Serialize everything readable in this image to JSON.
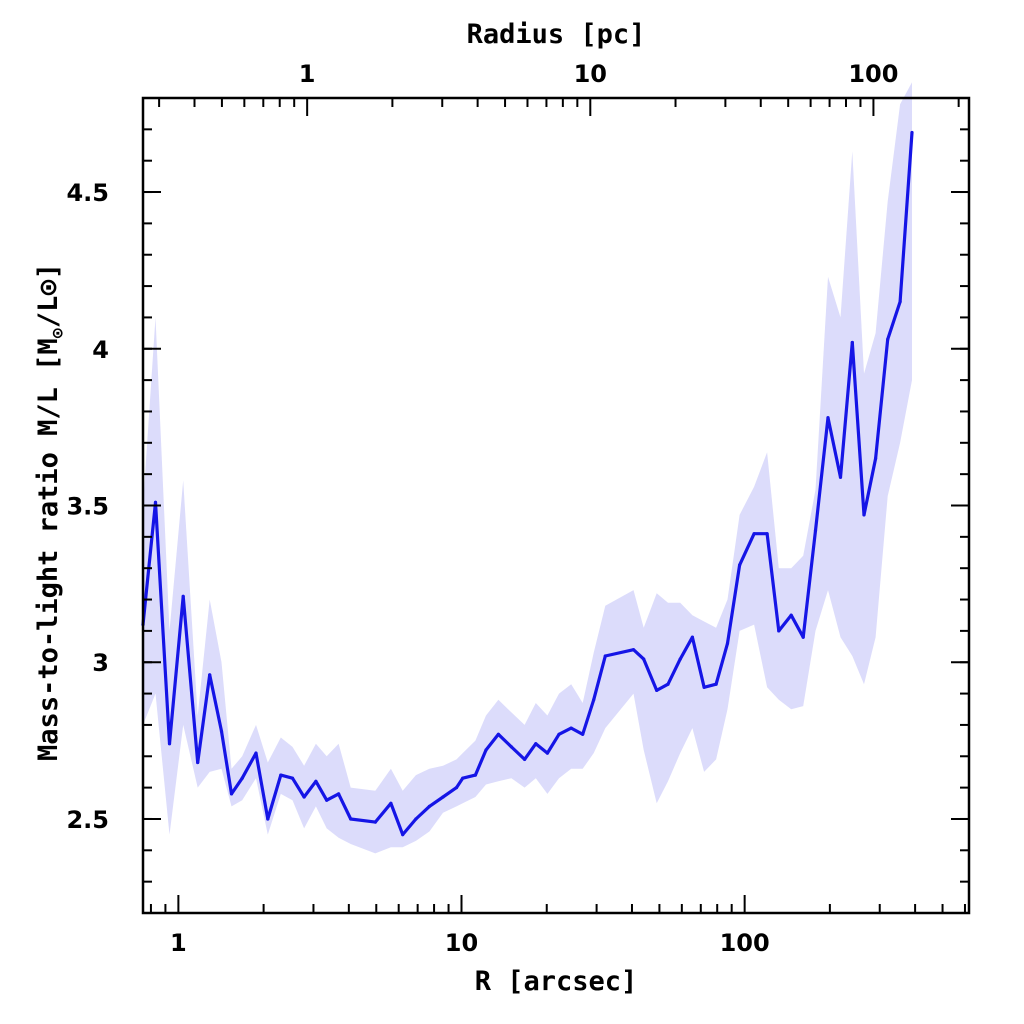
{
  "chart_data": {
    "type": "line",
    "title": "",
    "xlabel": "R [arcsec]",
    "ylabel": "Mass-to-light ratio M/L [M⊙/L⊙]",
    "ylabel_main": "Mass-to-light ratio M/L [M",
    "ylabel_sub": "⊙",
    "ylabel_tail": "/L⊙]",
    "top_xlabel": "Radius [pc]",
    "x_scale": "log",
    "xlim": [
      0.75,
      620
    ],
    "ylim": [
      2.2,
      4.8
    ],
    "yticks": [
      2.5,
      3,
      3.5,
      4,
      4.5
    ],
    "ytick_labels": [
      "2.5",
      "3",
      "3.5",
      "4",
      "4.5"
    ],
    "xticks_major": [
      1,
      10,
      100
    ],
    "xtick_labels": [
      "1",
      "10",
      "100"
    ],
    "top_xticks_major_arcsec": [
      2.85,
      28.5,
      285
    ],
    "top_xtick_labels": [
      "1",
      "10",
      "100"
    ],
    "top_xticks_minor_arcsec": [
      0.855,
      1.14,
      1.425,
      1.71,
      1.995,
      2.28,
      2.565,
      5.7,
      8.55,
      11.4,
      14.25,
      17.1,
      19.95,
      22.8,
      25.65,
      57,
      85.5,
      114,
      142.5,
      171,
      199.5,
      228,
      256.5,
      570
    ],
    "grid": false,
    "legend": "none",
    "series": [
      {
        "name": "M/L",
        "color": "#1515e6",
        "x": [
          0.75,
          0.83,
          0.93,
          1.04,
          1.17,
          1.29,
          1.42,
          1.54,
          1.68,
          1.88,
          2.07,
          2.3,
          2.53,
          2.78,
          3.06,
          3.34,
          3.68,
          4.06,
          4.96,
          5.63,
          6.2,
          6.9,
          7.7,
          8.6,
          9.6,
          10.1,
          11.2,
          12.2,
          13.5,
          15.0,
          16.7,
          18.3,
          20.1,
          22.1,
          24.4,
          26.8,
          29.3,
          32.2,
          40.5,
          44.0,
          48.9,
          53.6,
          59.2,
          65.4,
          71.9,
          79.3,
          87.0,
          96.0,
          108,
          120,
          132,
          146,
          161,
          178,
          197,
          218,
          240,
          264,
          290,
          320,
          354,
          390
        ],
        "values": [
          3.12,
          3.51,
          2.74,
          3.21,
          2.68,
          2.96,
          2.78,
          2.58,
          2.63,
          2.71,
          2.5,
          2.64,
          2.63,
          2.57,
          2.62,
          2.56,
          2.58,
          2.5,
          2.49,
          2.55,
          2.45,
          2.5,
          2.54,
          2.57,
          2.6,
          2.63,
          2.64,
          2.72,
          2.77,
          2.73,
          2.69,
          2.74,
          2.71,
          2.77,
          2.79,
          2.77,
          2.88,
          3.02,
          3.04,
          3.01,
          2.91,
          2.93,
          3.01,
          3.08,
          2.92,
          2.93,
          3.06,
          3.31,
          3.41,
          3.41,
          3.1,
          3.15,
          3.08,
          3.42,
          3.78,
          3.59,
          4.02,
          3.47,
          3.65,
          4.03,
          4.15,
          4.69
        ],
        "lower": [
          2.8,
          2.9,
          2.45,
          2.8,
          2.6,
          2.65,
          2.66,
          2.54,
          2.56,
          2.63,
          2.45,
          2.58,
          2.56,
          2.47,
          2.54,
          2.47,
          2.44,
          2.42,
          2.39,
          2.41,
          2.41,
          2.43,
          2.46,
          2.52,
          2.54,
          2.55,
          2.57,
          2.61,
          2.62,
          2.63,
          2.6,
          2.63,
          2.58,
          2.63,
          2.66,
          2.66,
          2.71,
          2.79,
          2.9,
          2.72,
          2.55,
          2.62,
          2.71,
          2.79,
          2.65,
          2.69,
          2.85,
          3.1,
          3.12,
          2.92,
          2.88,
          2.85,
          2.86,
          3.1,
          3.23,
          3.08,
          3.02,
          2.93,
          3.08,
          3.53,
          3.7,
          3.9
        ],
        "upper": [
          3.5,
          4.1,
          3.1,
          3.58,
          2.83,
          3.2,
          3.0,
          2.66,
          2.7,
          2.8,
          2.68,
          2.76,
          2.73,
          2.67,
          2.74,
          2.7,
          2.74,
          2.6,
          2.59,
          2.66,
          2.59,
          2.64,
          2.66,
          2.67,
          2.69,
          2.71,
          2.75,
          2.83,
          2.88,
          2.84,
          2.8,
          2.87,
          2.83,
          2.9,
          2.93,
          2.87,
          3.03,
          3.18,
          3.23,
          3.11,
          3.22,
          3.19,
          3.19,
          3.15,
          3.13,
          3.11,
          3.2,
          3.47,
          3.56,
          3.67,
          3.3,
          3.3,
          3.34,
          3.55,
          4.23,
          4.1,
          4.63,
          3.92,
          4.05,
          4.47,
          4.78,
          4.85
        ]
      }
    ]
  }
}
